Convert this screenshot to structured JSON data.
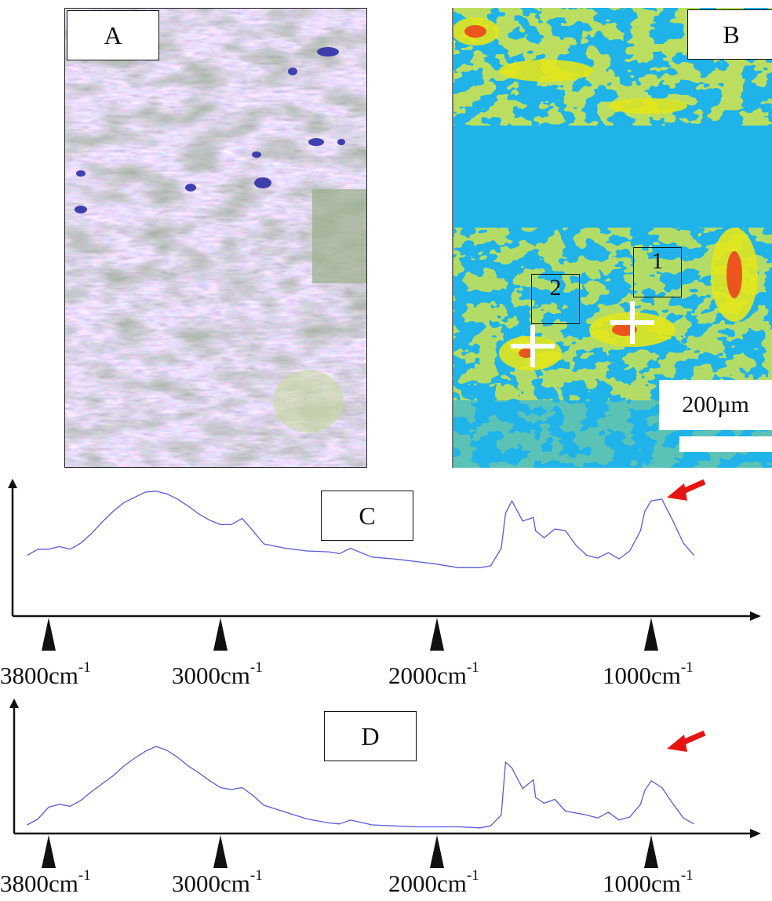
{
  "panels": {
    "a": {
      "label": "A"
    },
    "b": {
      "label": "B",
      "markers": [
        "1",
        "2"
      ],
      "scale_bar": "200µm"
    },
    "c": {
      "label": "C"
    },
    "d": {
      "label": "D"
    }
  },
  "axis_ticks": [
    {
      "value": 3800,
      "text": "3800cm",
      "sup": "-1"
    },
    {
      "value": 3000,
      "text": "3000cm",
      "sup": "-1"
    },
    {
      "value": 2000,
      "text": "2000cm",
      "sup": "-1"
    },
    {
      "value": 1000,
      "text": "1000cm",
      "sup": "-1"
    }
  ],
  "colors": {
    "spectrum": "#5a5adc",
    "arrow": "#e8140f",
    "axis": "#111111"
  },
  "chart_data": [
    {
      "type": "line",
      "title": "C",
      "xlabel": "",
      "ylabel": "",
      "x_reversed": true,
      "x_units": "cm-1",
      "x_ticks": [
        3800,
        3000,
        2000,
        1000
      ],
      "ylim": [
        0,
        1
      ],
      "annotation": "red arrow at ~1000 cm-1 peak",
      "x": [
        3900,
        3850,
        3800,
        3750,
        3700,
        3650,
        3600,
        3550,
        3500,
        3450,
        3400,
        3350,
        3300,
        3250,
        3200,
        3150,
        3100,
        3050,
        3000,
        2950,
        2900,
        2850,
        2800,
        2700,
        2600,
        2500,
        2450,
        2400,
        2300,
        2200,
        2100,
        2000,
        1900,
        1800,
        1750,
        1700,
        1680,
        1650,
        1600,
        1550,
        1540,
        1500,
        1450,
        1400,
        1350,
        1300,
        1250,
        1200,
        1150,
        1100,
        1050,
        1030,
        1000,
        950,
        900,
        850,
        800
      ],
      "y": [
        0.2,
        0.27,
        0.27,
        0.3,
        0.27,
        0.34,
        0.45,
        0.58,
        0.7,
        0.8,
        0.86,
        0.92,
        0.93,
        0.9,
        0.84,
        0.76,
        0.67,
        0.6,
        0.55,
        0.55,
        0.62,
        0.48,
        0.33,
        0.28,
        0.25,
        0.24,
        0.22,
        0.28,
        0.18,
        0.16,
        0.13,
        0.1,
        0.06,
        0.06,
        0.08,
        0.28,
        0.68,
        0.82,
        0.59,
        0.63,
        0.48,
        0.4,
        0.5,
        0.48,
        0.31,
        0.2,
        0.17,
        0.23,
        0.16,
        0.25,
        0.48,
        0.7,
        0.82,
        0.84,
        0.6,
        0.34,
        0.2
      ]
    },
    {
      "type": "line",
      "title": "D",
      "xlabel": "",
      "ylabel": "",
      "x_reversed": true,
      "x_units": "cm-1",
      "x_ticks": [
        3800,
        3000,
        2000,
        1000
      ],
      "ylim": [
        0,
        1
      ],
      "annotation": "red arrow at ~1000 cm-1 peak",
      "x": [
        3900,
        3850,
        3800,
        3750,
        3700,
        3650,
        3600,
        3550,
        3500,
        3450,
        3400,
        3350,
        3300,
        3250,
        3200,
        3150,
        3100,
        3050,
        3000,
        2950,
        2900,
        2850,
        2800,
        2700,
        2600,
        2500,
        2450,
        2400,
        2300,
        2200,
        2100,
        2000,
        1900,
        1800,
        1750,
        1700,
        1680,
        1650,
        1600,
        1550,
        1540,
        1500,
        1450,
        1400,
        1350,
        1300,
        1250,
        1200,
        1150,
        1100,
        1050,
        1030,
        1000,
        950,
        900,
        850,
        800
      ],
      "y": [
        0.08,
        0.14,
        0.26,
        0.29,
        0.27,
        0.33,
        0.42,
        0.5,
        0.58,
        0.68,
        0.76,
        0.83,
        0.88,
        0.84,
        0.77,
        0.68,
        0.61,
        0.53,
        0.46,
        0.44,
        0.46,
        0.38,
        0.28,
        0.21,
        0.14,
        0.1,
        0.09,
        0.13,
        0.08,
        0.07,
        0.06,
        0.06,
        0.06,
        0.05,
        0.07,
        0.18,
        0.72,
        0.66,
        0.45,
        0.54,
        0.36,
        0.3,
        0.34,
        0.22,
        0.2,
        0.18,
        0.15,
        0.21,
        0.13,
        0.16,
        0.29,
        0.43,
        0.53,
        0.46,
        0.3,
        0.15,
        0.09
      ]
    }
  ]
}
